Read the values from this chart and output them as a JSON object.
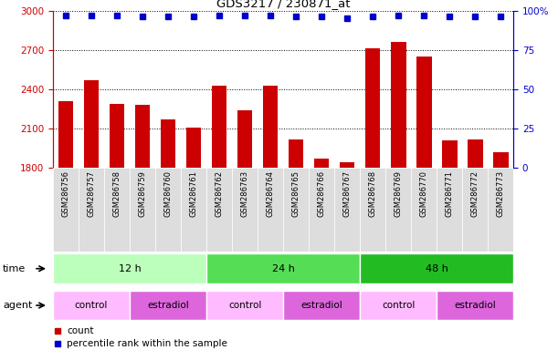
{
  "title": "GDS3217 / 230871_at",
  "samples": [
    "GSM286756",
    "GSM286757",
    "GSM286758",
    "GSM286759",
    "GSM286760",
    "GSM286761",
    "GSM286762",
    "GSM286763",
    "GSM286764",
    "GSM286765",
    "GSM286766",
    "GSM286767",
    "GSM286768",
    "GSM286769",
    "GSM286770",
    "GSM286771",
    "GSM286772",
    "GSM286773"
  ],
  "counts": [
    2310,
    2470,
    2290,
    2280,
    2170,
    2110,
    2430,
    2240,
    2430,
    2020,
    1870,
    1845,
    2710,
    2760,
    2650,
    2010,
    2020,
    1920
  ],
  "percentile_ranks": [
    97,
    97,
    97,
    96,
    96,
    96,
    97,
    97,
    97,
    96,
    96,
    95,
    96,
    97,
    97,
    96,
    96,
    96
  ],
  "bar_color": "#cc0000",
  "dot_color": "#0000cc",
  "ylim_left": [
    1800,
    3000
  ],
  "ylim_right": [
    0,
    100
  ],
  "yticks_left": [
    1800,
    2100,
    2400,
    2700,
    3000
  ],
  "yticks_right": [
    0,
    25,
    50,
    75,
    100
  ],
  "ytick_right_labels": [
    "0",
    "25",
    "50",
    "75",
    "100%"
  ],
  "time_groups": [
    {
      "label": "12 h",
      "start": 0,
      "end": 6,
      "color": "#bbffbb"
    },
    {
      "label": "24 h",
      "start": 6,
      "end": 12,
      "color": "#55dd55"
    },
    {
      "label": "48 h",
      "start": 12,
      "end": 18,
      "color": "#22bb22"
    }
  ],
  "agent_groups": [
    {
      "label": "control",
      "start": 0,
      "end": 3,
      "color": "#ffbbff"
    },
    {
      "label": "estradiol",
      "start": 3,
      "end": 6,
      "color": "#dd66dd"
    },
    {
      "label": "control",
      "start": 6,
      "end": 9,
      "color": "#ffbbff"
    },
    {
      "label": "estradiol",
      "start": 9,
      "end": 12,
      "color": "#dd66dd"
    },
    {
      "label": "control",
      "start": 12,
      "end": 15,
      "color": "#ffbbff"
    },
    {
      "label": "estradiol",
      "start": 15,
      "end": 18,
      "color": "#dd66dd"
    }
  ],
  "legend_count_label": "count",
  "legend_pct_label": "percentile rank within the sample",
  "time_label": "time",
  "agent_label": "agent",
  "bg_color": "#ffffff",
  "xtick_bg": "#dddddd"
}
